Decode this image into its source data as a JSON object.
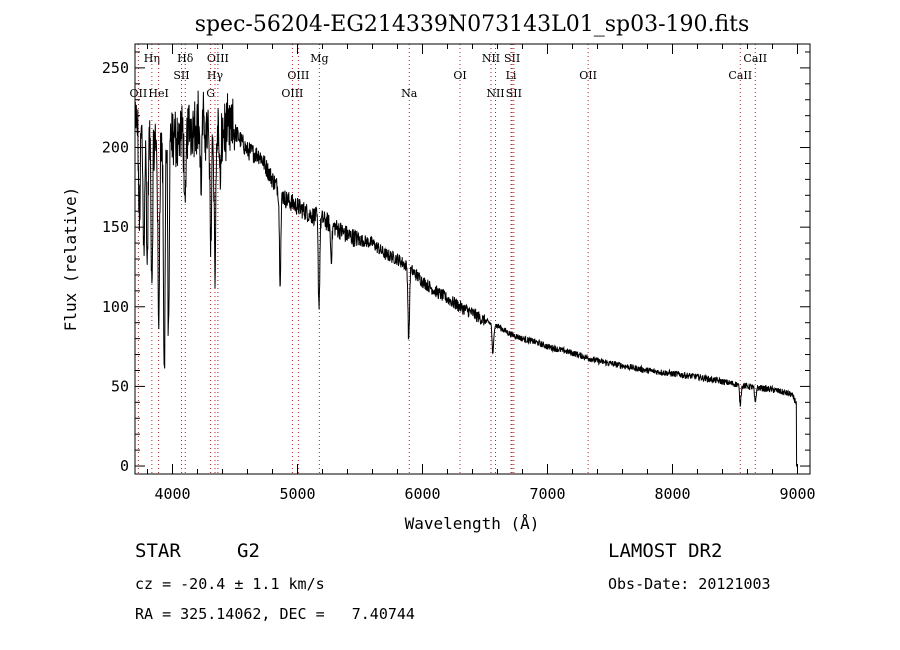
{
  "chart_data": {
    "type": "line",
    "title": "spec-56204-EG214339N073143L01_sp03-190.fits",
    "xlabel": "Wavelength (Å)",
    "ylabel": "Flux (relative)",
    "xlim": [
      3700,
      9100
    ],
    "ylim": [
      -5,
      265
    ],
    "xticks": [
      4000,
      5000,
      6000,
      7000,
      8000,
      9000
    ],
    "yticks": [
      0,
      50,
      100,
      150,
      200,
      250
    ],
    "grid": false,
    "line_color": "#000000",
    "marker_line_color": "#b22222",
    "continuum": {
      "x": [
        3700,
        3800,
        3900,
        4000,
        4100,
        4200,
        4300,
        4400,
        4500,
        4600,
        4700,
        4800,
        4900,
        5000,
        5100,
        5200,
        5300,
        5400,
        5500,
        5600,
        5700,
        5800,
        5900,
        6000,
        6100,
        6200,
        6300,
        6400,
        6500,
        6600,
        6700,
        6800,
        6900,
        7000,
        7200,
        7400,
        7600,
        7800,
        8000,
        8200,
        8400,
        8600,
        8800,
        8950,
        8990,
        9000
      ],
      "y": [
        215,
        205,
        200,
        205,
        210,
        218,
        208,
        210,
        210,
        198,
        195,
        180,
        168,
        163,
        158,
        155,
        150,
        145,
        142,
        140,
        133,
        130,
        124,
        116,
        110,
        105,
        100,
        96,
        91,
        88,
        83,
        80,
        78,
        75,
        71,
        66,
        63,
        60,
        58,
        56,
        53,
        50,
        48,
        45,
        40,
        0
      ]
    },
    "absorption_features": [
      {
        "x": 3735,
        "depth": 60
      },
      {
        "x": 3770,
        "depth": 70
      },
      {
        "x": 3798,
        "depth": 80
      },
      {
        "x": 3835,
        "depth": 90
      },
      {
        "x": 3889,
        "depth": 115
      },
      {
        "x": 3934,
        "depth": 150
      },
      {
        "x": 3968,
        "depth": 120
      },
      {
        "x": 4101,
        "depth": 60
      },
      {
        "x": 4227,
        "depth": 40
      },
      {
        "x": 4305,
        "depth": 70
      },
      {
        "x": 4340,
        "depth": 90
      },
      {
        "x": 4383,
        "depth": 35
      },
      {
        "x": 4861,
        "depth": 55
      },
      {
        "x": 5172,
        "depth": 55
      },
      {
        "x": 5270,
        "depth": 20
      },
      {
        "x": 5890,
        "depth": 45
      },
      {
        "x": 6563,
        "depth": 20
      },
      {
        "x": 8542,
        "depth": 12
      },
      {
        "x": 8662,
        "depth": 10
      }
    ],
    "line_markers": [
      {
        "label": "OII",
        "x": 3727,
        "row": 3
      },
      {
        "label": "Hη",
        "x": 3835,
        "row": 1
      },
      {
        "label": "HeI",
        "x": 3889,
        "row": 3
      },
      {
        "label": "Hδ",
        "x": 4102,
        "row": 1
      },
      {
        "label": "SII",
        "x": 4072,
        "row": 2
      },
      {
        "label": "OIII",
        "x": 4363,
        "row": 1
      },
      {
        "label": "Hγ",
        "x": 4340,
        "row": 2
      },
      {
        "label": "G",
        "x": 4305,
        "row": 3
      },
      {
        "label": "OIII",
        "x": 5007,
        "row": 2
      },
      {
        "label": "OIII",
        "x": 4959,
        "row": 3
      },
      {
        "label": "Mg",
        "x": 5175,
        "row": 1
      },
      {
        "label": "Na",
        "x": 5894,
        "row": 3
      },
      {
        "label": "OI",
        "x": 6300,
        "row": 2
      },
      {
        "label": "NII",
        "x": 6548,
        "row": 1
      },
      {
        "label": "SII",
        "x": 6717,
        "row": 1
      },
      {
        "label": "Li",
        "x": 6708,
        "row": 2
      },
      {
        "label": "NII",
        "x": 6584,
        "row": 3
      },
      {
        "label": "SII",
        "x": 6731,
        "row": 3
      },
      {
        "label": "OII",
        "x": 7325,
        "row": 2
      },
      {
        "label": "CaII",
        "x": 8662,
        "row": 1
      },
      {
        "label": "CaII",
        "x": 8542,
        "row": 2
      }
    ]
  },
  "info": {
    "class": "STAR",
    "subclass": "G2",
    "survey": "LAMOST DR2",
    "cz": "cz = -20.4 ± 1.1 km/s",
    "obs_date": "Obs-Date: 20121003",
    "radec": "RA = 325.14062, DEC =   7.40744"
  }
}
